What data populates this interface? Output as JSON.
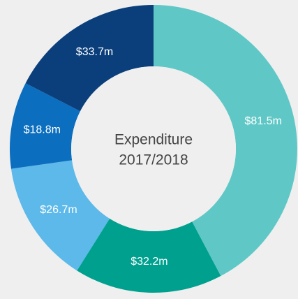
{
  "chart_data": {
    "type": "donut",
    "center_text": [
      "Expenditure",
      "2017/2018"
    ],
    "categories": [
      null,
      null,
      null,
      null,
      null
    ],
    "values": [
      81.5,
      32.2,
      26.7,
      18.8,
      33.7
    ],
    "value_labels": [
      "$81.5m",
      "$32.2m",
      "$26.7m",
      "$18.8m",
      "$33.7m"
    ],
    "colors": [
      "#5fc8c6",
      "#00a08f",
      "#5cb9e9",
      "#0b6ebf",
      "#0b3f7b"
    ]
  }
}
